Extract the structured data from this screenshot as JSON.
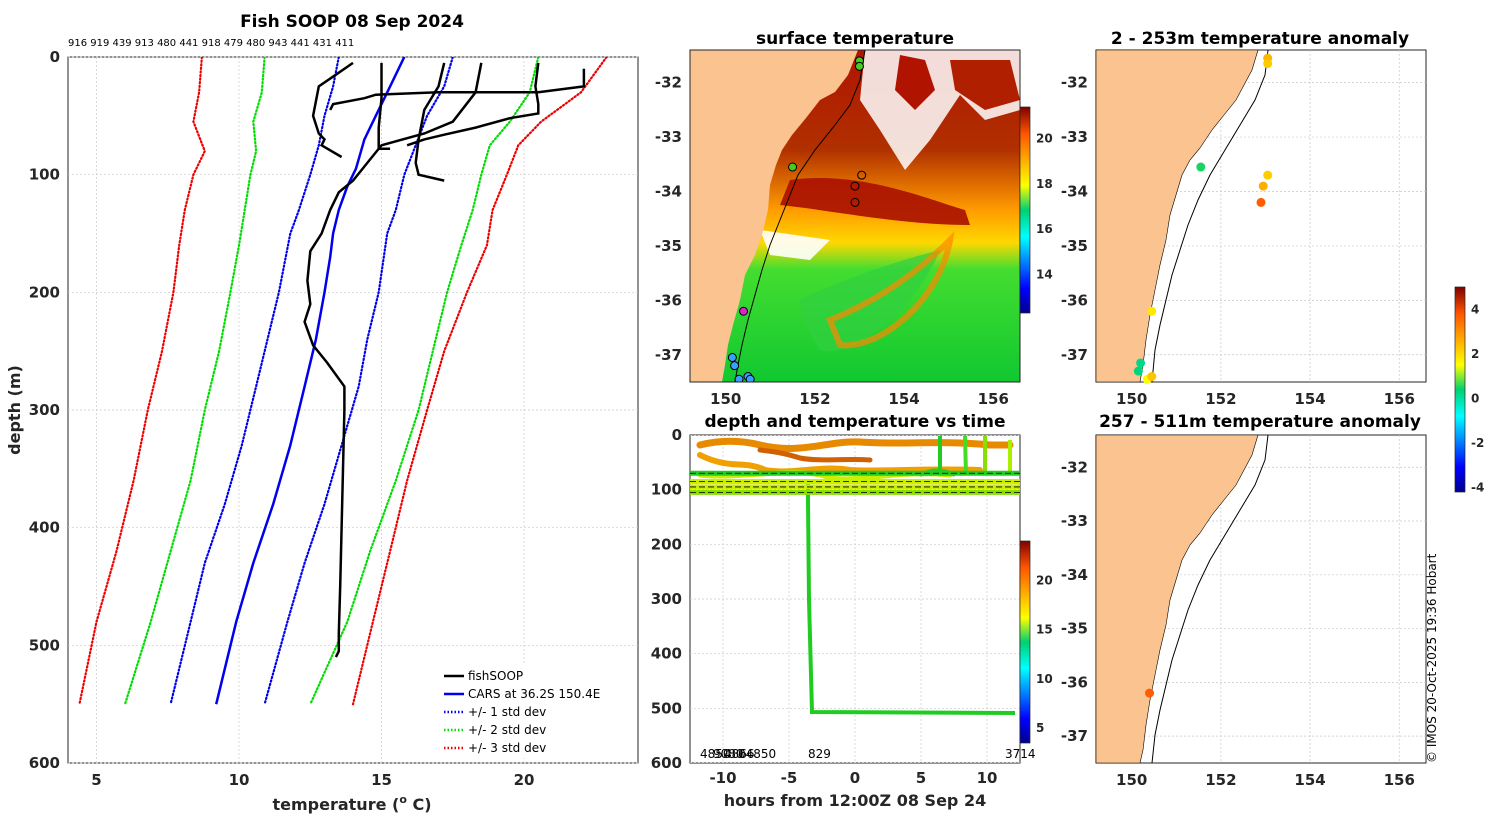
{
  "page_title": "Fish SOOP 08 Sep 2024",
  "top_ids": "916 919 439 913 480 441 918 479 480 943 441 431 411",
  "copyright": "© IMOS 20-Oct-2025 19:36 Hobart",
  "chart_data": [
    {
      "id": "profile",
      "type": "line",
      "title": "Fish SOOP 08 Sep 2024",
      "xlabel": "temperature (",
      "xlabel_sup": "o",
      "xlabel_end": " C)",
      "ylabel": "depth (m)",
      "xlim": [
        4,
        24
      ],
      "ylim": [
        0,
        600
      ],
      "xticks": [
        5,
        10,
        15,
        20
      ],
      "yticks": [
        0,
        100,
        200,
        300,
        400,
        500,
        600
      ],
      "legend": [
        "fishSOOP",
        "CARS at 36.2S 150.4E",
        "+/- 1 std dev",
        "+/- 2 std dev",
        "+/- 3 std dev"
      ],
      "legend_position": "bottom-right",
      "series": [
        {
          "name": "CARS at 36.2S 150.4E",
          "color": "#0000ee",
          "style": "solid",
          "points": [
            [
              15.8,
              0
            ],
            [
              15.3,
              25
            ],
            [
              14.8,
              50
            ],
            [
              14.4,
              70
            ],
            [
              14.1,
              95
            ],
            [
              13.8,
              110
            ],
            [
              13.5,
              130
            ],
            [
              13.3,
              150
            ],
            [
              13.2,
              170
            ],
            [
              13.0,
              200
            ],
            [
              12.7,
              240
            ],
            [
              12.3,
              280
            ],
            [
              11.8,
              330
            ],
            [
              11.2,
              380
            ],
            [
              10.5,
              430
            ],
            [
              9.9,
              480
            ],
            [
              9.2,
              550
            ]
          ]
        },
        {
          "name": "+1 std",
          "color": "#0000ee",
          "style": "dotted",
          "points": [
            [
              17.5,
              0
            ],
            [
              17.2,
              25
            ],
            [
              16.6,
              50
            ],
            [
              16.2,
              75
            ],
            [
              15.8,
              100
            ],
            [
              15.5,
              130
            ],
            [
              15.2,
              150
            ],
            [
              14.9,
              200
            ],
            [
              14.5,
              240
            ],
            [
              14.2,
              280
            ],
            [
              13.6,
              330
            ],
            [
              13.0,
              380
            ],
            [
              12.3,
              430
            ],
            [
              11.7,
              480
            ],
            [
              10.9,
              550
            ]
          ]
        },
        {
          "name": "-1 std",
          "color": "#0000ee",
          "style": "dotted",
          "points": [
            [
              13.5,
              0
            ],
            [
              13.3,
              25
            ],
            [
              13.0,
              50
            ],
            [
              12.8,
              75
            ],
            [
              12.5,
              100
            ],
            [
              12.1,
              130
            ],
            [
              11.8,
              150
            ],
            [
              11.4,
              200
            ],
            [
              11.0,
              240
            ],
            [
              10.6,
              280
            ],
            [
              10.1,
              330
            ],
            [
              9.5,
              380
            ],
            [
              8.8,
              430
            ],
            [
              8.3,
              480
            ],
            [
              7.6,
              550
            ]
          ]
        },
        {
          "name": "+2 std",
          "color": "#00dd00",
          "style": "dotted",
          "points": [
            [
              20.5,
              0
            ],
            [
              20.2,
              30
            ],
            [
              19.5,
              55
            ],
            [
              18.8,
              75
            ],
            [
              18.5,
              100
            ],
            [
              18.2,
              130
            ],
            [
              17.8,
              160
            ],
            [
              17.3,
              200
            ],
            [
              16.8,
              250
            ],
            [
              16.3,
              300
            ],
            [
              15.5,
              360
            ],
            [
              14.6,
              420
            ],
            [
              13.8,
              480
            ],
            [
              12.5,
              550
            ]
          ]
        },
        {
          "name": "-2 std",
          "color": "#00dd00",
          "style": "dotted",
          "points": [
            [
              10.9,
              0
            ],
            [
              10.8,
              30
            ],
            [
              10.5,
              55
            ],
            [
              10.6,
              80
            ],
            [
              10.4,
              100
            ],
            [
              10.2,
              130
            ],
            [
              10.0,
              160
            ],
            [
              9.7,
              200
            ],
            [
              9.3,
              250
            ],
            [
              8.8,
              300
            ],
            [
              8.3,
              360
            ],
            [
              7.6,
              420
            ],
            [
              6.9,
              480
            ],
            [
              6.0,
              550
            ]
          ]
        },
        {
          "name": "+3 std",
          "color": "#ee0000",
          "style": "dotted",
          "points": [
            [
              22.9,
              0
            ],
            [
              22.0,
              30
            ],
            [
              20.6,
              55
            ],
            [
              19.8,
              75
            ],
            [
              19.4,
              100
            ],
            [
              18.9,
              130
            ],
            [
              18.7,
              160
            ],
            [
              18.0,
              200
            ],
            [
              17.2,
              250
            ],
            [
              16.6,
              300
            ],
            [
              15.9,
              360
            ],
            [
              15.3,
              420
            ],
            [
              14.7,
              480
            ],
            [
              14.0,
              550
            ]
          ]
        },
        {
          "name": "-3 std",
          "color": "#ee0000",
          "style": "dotted",
          "points": [
            [
              8.7,
              0
            ],
            [
              8.6,
              30
            ],
            [
              8.4,
              55
            ],
            [
              8.8,
              80
            ],
            [
              8.4,
              100
            ],
            [
              8.1,
              130
            ],
            [
              7.9,
              160
            ],
            [
              7.7,
              200
            ],
            [
              7.3,
              250
            ],
            [
              6.8,
              300
            ],
            [
              6.3,
              360
            ],
            [
              5.7,
              420
            ],
            [
              5.0,
              480
            ],
            [
              4.4,
              550
            ]
          ]
        },
        {
          "name": "fishSOOP",
          "color": "#000000",
          "style": "solid",
          "points": [
            [
              18.5,
              5
            ],
            [
              18.3,
              30
            ],
            [
              17.5,
              55
            ],
            [
              16.5,
              65
            ],
            [
              15.0,
              75
            ],
            [
              14.5,
              90
            ],
            [
              14.0,
              105
            ],
            [
              13.5,
              115
            ],
            [
              13.2,
              130
            ],
            [
              12.9,
              150
            ],
            [
              12.5,
              165
            ],
            [
              12.4,
              190
            ],
            [
              12.5,
              210
            ],
            [
              12.3,
              225
            ],
            [
              12.6,
              245
            ],
            [
              13.1,
              260
            ],
            [
              13.7,
              280
            ],
            [
              13.7,
              300
            ],
            [
              13.65,
              350
            ],
            [
              13.6,
              400
            ],
            [
              13.55,
              450
            ],
            [
              13.5,
              490
            ],
            [
              13.5,
              505
            ],
            [
              13.4,
              510
            ]
          ]
        },
        {
          "name": "fishSOOP-2",
          "color": "#000000",
          "style": "solid",
          "points": [
            [
              14.0,
              5
            ],
            [
              13.4,
              15
            ],
            [
              12.8,
              25
            ],
            [
              12.6,
              50
            ],
            [
              12.8,
              65
            ],
            [
              13.0,
              70
            ],
            [
              12.9,
              75
            ],
            [
              13.6,
              85
            ]
          ]
        },
        {
          "name": "fishSOOP-3",
          "color": "#000000",
          "style": "solid",
          "points": [
            [
              15.0,
              5
            ],
            [
              15.0,
              35
            ],
            [
              14.9,
              60
            ],
            [
              14.9,
              78
            ],
            [
              15.3,
              78
            ]
          ]
        },
        {
          "name": "fishSOOP-4",
          "color": "#000000",
          "style": "solid",
          "points": [
            [
              20.5,
              5
            ],
            [
              20.4,
              25
            ],
            [
              20.5,
              40
            ],
            [
              20.5,
              48
            ],
            [
              19.5,
              52
            ],
            [
              18.3,
              60
            ],
            [
              17.2,
              66
            ],
            [
              16.5,
              70
            ],
            [
              15.9,
              75
            ]
          ]
        },
        {
          "name": "fishSOOP-5",
          "color": "#000000",
          "style": "solid",
          "points": [
            [
              17.2,
              5
            ],
            [
              17.0,
              25
            ],
            [
              16.5,
              45
            ],
            [
              16.3,
              70
            ],
            [
              16.2,
              90
            ],
            [
              16.3,
              100
            ],
            [
              17.2,
              105
            ]
          ]
        },
        {
          "name": "fishSOOP-6",
          "color": "#000000",
          "style": "solid",
          "points": [
            [
              22.1,
              10
            ],
            [
              22.1,
              25
            ],
            [
              20.5,
              30
            ],
            [
              17.0,
              30
            ],
            [
              14.8,
              32
            ],
            [
              14.4,
              35
            ],
            [
              13.3,
              40
            ],
            [
              13.2,
              45
            ]
          ]
        }
      ]
    },
    {
      "id": "surface",
      "type": "heatmap",
      "title": "surface temperature",
      "xlim": [
        149.2,
        156.6
      ],
      "ylim": [
        -37.5,
        -31.4
      ],
      "xticks": [
        150,
        152,
        154,
        156
      ],
      "yticks": [
        -32,
        -33,
        -34,
        -35,
        -36,
        -37
      ],
      "colorbar_ticks": [
        14,
        16,
        18,
        20
      ],
      "colorbar_range": [
        12.3,
        21.4
      ],
      "stations": [
        [
          153.0,
          -31.6
        ],
        [
          153.0,
          -31.7
        ],
        [
          151.5,
          -33.55
        ],
        [
          153.05,
          -33.7
        ],
        [
          152.9,
          -33.9
        ],
        [
          152.9,
          -34.2
        ],
        [
          150.4,
          -36.2
        ],
        [
          150.15,
          -37.05
        ],
        [
          150.2,
          -37.2
        ],
        [
          150.3,
          -37.45
        ],
        [
          150.5,
          -37.4
        ],
        [
          150.55,
          -37.45
        ]
      ]
    },
    {
      "id": "depth_time",
      "type": "scatter",
      "title": "depth and temperature vs time",
      "xlabel": "hours from 12:00Z 08 Sep 24",
      "xlim": [
        -12.5,
        12.5
      ],
      "ylim": [
        0,
        600
      ],
      "xticks": [
        -10,
        -5,
        0,
        5,
        10
      ],
      "yticks": [
        0,
        100,
        200,
        300,
        400,
        500,
        600
      ],
      "colorbar_ticks": [
        5,
        10,
        15,
        20
      ],
      "colorbar_range": [
        3.5,
        24
      ],
      "bottom_labels": [
        "4850",
        "9080",
        "4866",
        "04850",
        "829",
        "3714"
      ],
      "reference_lines": [
        70,
        85,
        95,
        105
      ]
    },
    {
      "id": "anom_upper",
      "type": "scatter",
      "title": "2 - 253m temperature anomaly",
      "xlim": [
        149.2,
        156.6
      ],
      "ylim": [
        -37.5,
        -31.4
      ],
      "xticks": [
        150,
        152,
        154,
        156
      ],
      "yticks": [
        -32,
        -33,
        -34,
        -35,
        -36,
        -37
      ],
      "points": [
        [
          153.05,
          -31.55,
          2.5
        ],
        [
          153.05,
          -31.65,
          2.2
        ],
        [
          151.55,
          -33.55,
          0.5
        ],
        [
          153.05,
          -33.7,
          2.2
        ],
        [
          152.95,
          -33.9,
          2.6
        ],
        [
          152.9,
          -34.2,
          3.7
        ],
        [
          150.45,
          -36.2,
          1.8
        ],
        [
          150.2,
          -37.15,
          0.2
        ],
        [
          150.15,
          -37.3,
          0.3
        ],
        [
          150.35,
          -37.45,
          1.5
        ],
        [
          150.45,
          -37.4,
          2.3
        ]
      ]
    },
    {
      "id": "anom_lower",
      "type": "scatter",
      "title": "257 - 511m temperature anomaly",
      "xlim": [
        149.2,
        156.6
      ],
      "ylim": [
        -37.5,
        -31.4
      ],
      "xticks": [
        150,
        152,
        154,
        156
      ],
      "yticks": [
        -32,
        -33,
        -34,
        -35,
        -36,
        -37
      ],
      "points": [
        [
          150.4,
          -36.2,
          3.7
        ]
      ]
    },
    {
      "id": "anom_colorbar",
      "type": "colorbar",
      "range": [
        -4.2,
        5.0
      ],
      "ticks": [
        -4,
        -2,
        0,
        2,
        4
      ]
    }
  ]
}
